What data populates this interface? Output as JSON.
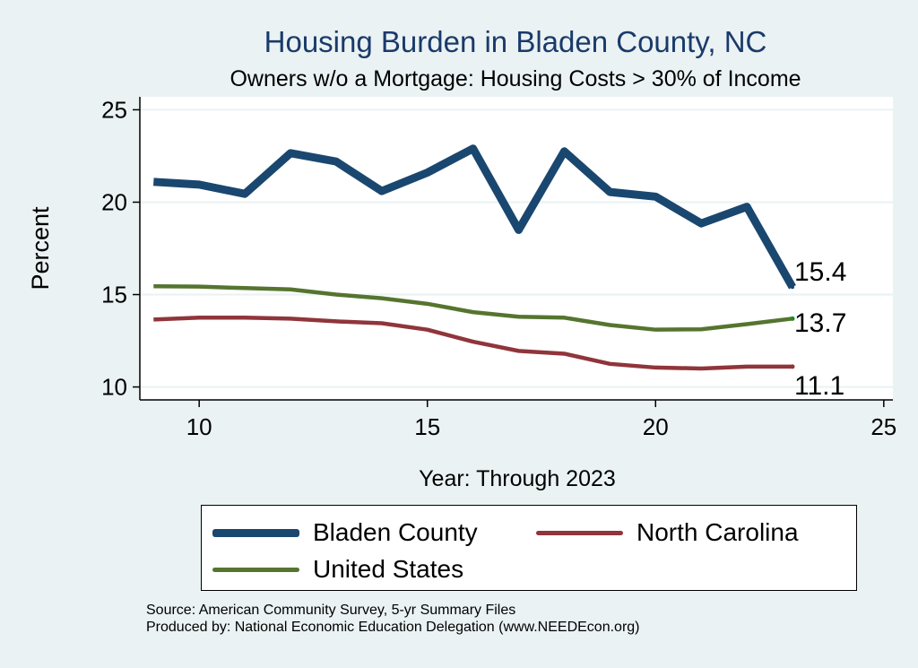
{
  "chart_data": {
    "type": "line",
    "title": "Housing Burden in Bladen County, NC",
    "subtitle": "Owners w/o a Mortgage: Housing Costs > 30% of Income",
    "xlabel": "Year: Through 2023",
    "ylabel": "Percent",
    "x": [
      9,
      10,
      11,
      12,
      13,
      14,
      15,
      16,
      17,
      18,
      19,
      20,
      21,
      22,
      23
    ],
    "xlim": [
      8.7,
      25.2
    ],
    "ylim": [
      9.3,
      25.7
    ],
    "xticks": [
      10,
      15,
      20,
      25
    ],
    "yticks": [
      10,
      15,
      20,
      25
    ],
    "grid": true,
    "series": [
      {
        "name": "Bladen County",
        "color": "#1a476f",
        "values": [
          21.1,
          20.95,
          20.45,
          22.65,
          22.2,
          20.6,
          21.6,
          22.9,
          18.5,
          22.75,
          20.55,
          20.3,
          18.85,
          19.75,
          15.4
        ],
        "end_label": "15.4"
      },
      {
        "name": "North Carolina",
        "color": "#90353b",
        "values": [
          13.65,
          13.75,
          13.75,
          13.7,
          13.55,
          13.45,
          13.1,
          12.45,
          11.95,
          11.8,
          11.25,
          11.05,
          11.0,
          11.1,
          11.1
        ],
        "end_label": "11.1"
      },
      {
        "name": "United States",
        "color": "#55752f",
        "values": [
          15.45,
          15.43,
          15.35,
          15.28,
          15.0,
          14.8,
          14.5,
          14.05,
          13.8,
          13.75,
          13.35,
          13.1,
          13.12,
          13.4,
          13.7
        ],
        "end_label": "13.7"
      }
    ],
    "legend": {
      "items": [
        {
          "label": "Bladen County",
          "color": "#1a476f"
        },
        {
          "label": "North Carolina",
          "color": "#90353b"
        },
        {
          "label": "United States",
          "color": "#55752f"
        }
      ],
      "placement": "bottom"
    }
  },
  "source_lines": {
    "source": "Source: American Community Survey, 5-yr Summary Files",
    "produced": "Produced by: National Economic Education Delegation (www.NEEDEcon.org)"
  }
}
